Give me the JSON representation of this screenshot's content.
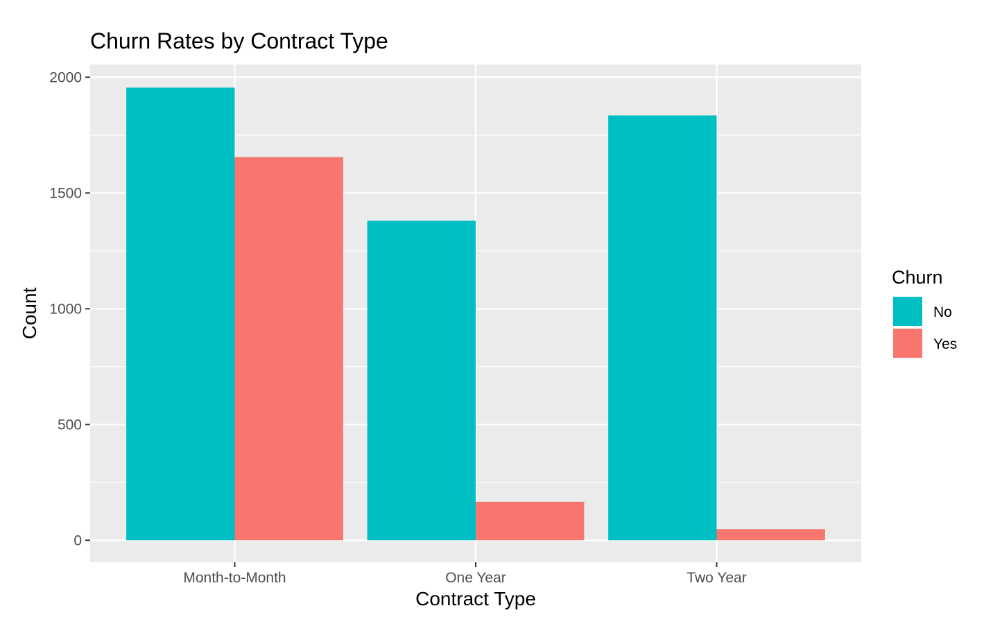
{
  "chart_data": {
    "type": "bar",
    "title": "Churn Rates by Contract Type",
    "xlabel": "Contract Type",
    "ylabel": "Count",
    "categories": [
      "Month-to-Month",
      "One Year",
      "Two Year"
    ],
    "series": [
      {
        "name": "No",
        "values": [
          1955,
          1380,
          1835
        ],
        "color": "#00BFC4"
      },
      {
        "name": "Yes",
        "values": [
          1655,
          166,
          48
        ],
        "color": "#F8766D"
      }
    ],
    "ylim": [
      -95,
      2055
    ],
    "yticks": [
      0,
      500,
      1000,
      1500,
      2000
    ],
    "grid": true,
    "legend": {
      "title": "Churn",
      "position": "right"
    },
    "panel_background": "#EBEBEB"
  }
}
